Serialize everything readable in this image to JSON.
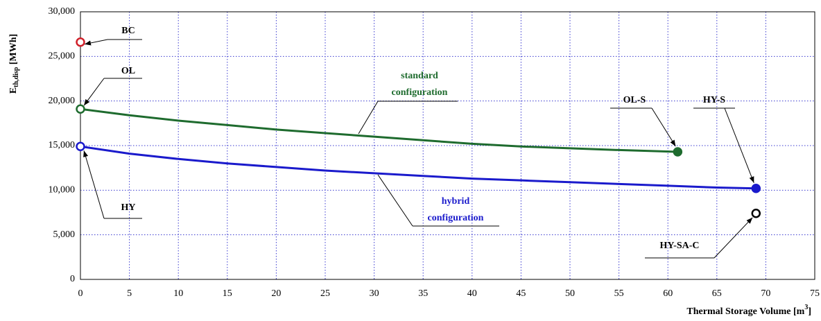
{
  "chart_data": {
    "type": "line",
    "x_label": {
      "main": "Thermal Storage Volume [m",
      "sup": "3",
      "end": "]"
    },
    "y_label": {
      "main": "E",
      "sub": "th,disp",
      "end": " [MWh]"
    },
    "xlim": [
      0,
      75
    ],
    "ylim": [
      0,
      30000
    ],
    "xticks": [
      0,
      5,
      10,
      15,
      20,
      25,
      30,
      35,
      40,
      45,
      50,
      55,
      60,
      65,
      70,
      75
    ],
    "yticks": [
      0,
      {
        "value": 5000,
        "label": "5,000"
      },
      {
        "value": 10000,
        "label": "10,000"
      },
      {
        "value": 15000,
        "label": "15,000"
      },
      {
        "value": 20000,
        "label": "20,000"
      },
      {
        "value": 25000,
        "label": "25,000"
      },
      {
        "value": 30000,
        "label": "30,000"
      }
    ],
    "grid": true,
    "series": [
      {
        "color": "#1e6b2e",
        "x": [
          0,
          5,
          10,
          15,
          20,
          25,
          30,
          35,
          40,
          45,
          50,
          55,
          61
        ],
        "values": [
          19100,
          18400,
          17800,
          17300,
          16800,
          16400,
          16000,
          15600,
          15200,
          14900,
          14700,
          14500,
          14300
        ]
      },
      {
        "color": "#1a1acc",
        "x": [
          0,
          5,
          10,
          15,
          20,
          25,
          30,
          35,
          40,
          45,
          50,
          55,
          60,
          65,
          69
        ],
        "values": [
          14900,
          14100,
          13500,
          13000,
          12600,
          12200,
          11900,
          11600,
          11300,
          11100,
          10900,
          10700,
          10500,
          10300,
          10200
        ]
      }
    ],
    "points": [
      {
        "label": "BC",
        "x": 0,
        "y": 26600,
        "color": "#d0202a",
        "filled": false
      },
      {
        "label": "OL",
        "x": 0,
        "y": 19100,
        "color": "#1e6b2e",
        "filled": false
      },
      {
        "label": "HY",
        "x": 0,
        "y": 14900,
        "color": "#1a1acc",
        "filled": false
      },
      {
        "label": "OL-S",
        "x": 61,
        "y": 14300,
        "color": "#1e6b2e",
        "filled": true
      },
      {
        "label": "HY-S",
        "x": 69,
        "y": 10200,
        "color": "#1a1acc",
        "filled": true
      },
      {
        "label": "HY-SA-C",
        "x": 69,
        "y": 7400,
        "color": "#000000",
        "filled": false
      }
    ],
    "annotations": [
      {
        "lines": [
          "standard",
          "configuration"
        ],
        "color": "#1e6b2e"
      },
      {
        "lines": [
          "hybrid",
          "configuration"
        ],
        "color": "#1a1acc"
      }
    ]
  }
}
